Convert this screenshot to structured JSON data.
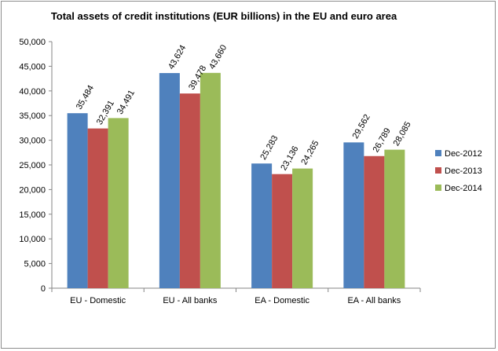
{
  "chart_data": {
    "type": "bar",
    "title": "Total assets of credit institutions (EUR billions) in the EU and euro area",
    "categories": [
      "EU - Domestic",
      "EU - All banks",
      "EA - Domestic",
      "EA - All banks"
    ],
    "series": [
      {
        "name": "Dec-2012",
        "color": "#4f81bd",
        "values": [
          35484,
          43624,
          25283,
          29562
        ],
        "labels": [
          "35,484",
          "43,624",
          "25,283",
          "29,562"
        ]
      },
      {
        "name": "Dec-2013",
        "color": "#c0504d",
        "values": [
          32391,
          39478,
          23136,
          26789
        ],
        "labels": [
          "32,391",
          "39,478",
          "23,136",
          "26,789"
        ]
      },
      {
        "name": "Dec-2014",
        "color": "#9bbb59",
        "values": [
          34491,
          43660,
          24265,
          28085
        ],
        "labels": [
          "34,491",
          "43,660",
          "24,265",
          "28,085"
        ]
      }
    ],
    "ylim": [
      0,
      50000
    ],
    "yticks": [
      "0",
      "5,000",
      "10,000",
      "15,000",
      "20,000",
      "25,000",
      "30,000",
      "35,000",
      "40,000",
      "45,000",
      "50,000"
    ],
    "grid": false,
    "legend_position": "right"
  }
}
